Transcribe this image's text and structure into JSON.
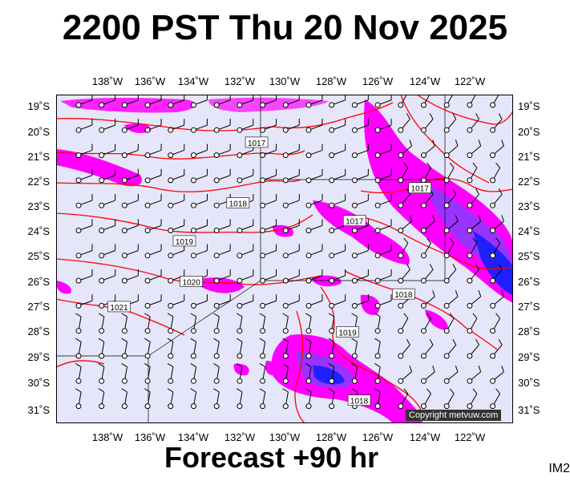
{
  "title": "2200 PST Thu 20 Nov 2025",
  "footer": "Forecast +90 hr",
  "image_tag": "IM2",
  "copyright": "Copyright metvuw.com",
  "colors": {
    "background": "#e6e6fa",
    "isobar": "#ff0000",
    "rain_light": "#ff00ff",
    "rain_mid": "#9933ff",
    "rain_heavy": "#2020ff",
    "wind_barb": "#000000"
  },
  "lat_labels": [
    "19˚S",
    "20˚S",
    "21˚S",
    "22˚S",
    "23˚S",
    "24˚S",
    "25˚S",
    "26˚S",
    "27˚S",
    "28˚S",
    "29˚S",
    "30˚S",
    "31˚S"
  ],
  "lon_labels": [
    "138˚W",
    "136˚W",
    "134˚W",
    "132˚W",
    "130˚W",
    "128˚W",
    "126˚W",
    "124˚W",
    "122˚W"
  ],
  "isobar_labels": [
    {
      "text": "1017",
      "lat": -20.5,
      "lon": -131.2
    },
    {
      "text": "1018",
      "lat": -22.9,
      "lon": -132.0
    },
    {
      "text": "1019",
      "lat": -24.4,
      "lon": -134.3
    },
    {
      "text": "1020",
      "lat": -26.0,
      "lon": -134.0
    },
    {
      "text": "1021",
      "lat": -27.0,
      "lon": -137.1
    },
    {
      "text": "1017",
      "lat": -22.3,
      "lon": -124.2
    },
    {
      "text": "1017",
      "lat": -23.6,
      "lon": -127.0
    },
    {
      "text": "1018",
      "lat": -26.5,
      "lon": -124.9
    },
    {
      "text": "1019",
      "lat": -28.0,
      "lon": -127.3
    },
    {
      "text": "1018",
      "lat": -30.7,
      "lon": -126.8
    }
  ]
}
